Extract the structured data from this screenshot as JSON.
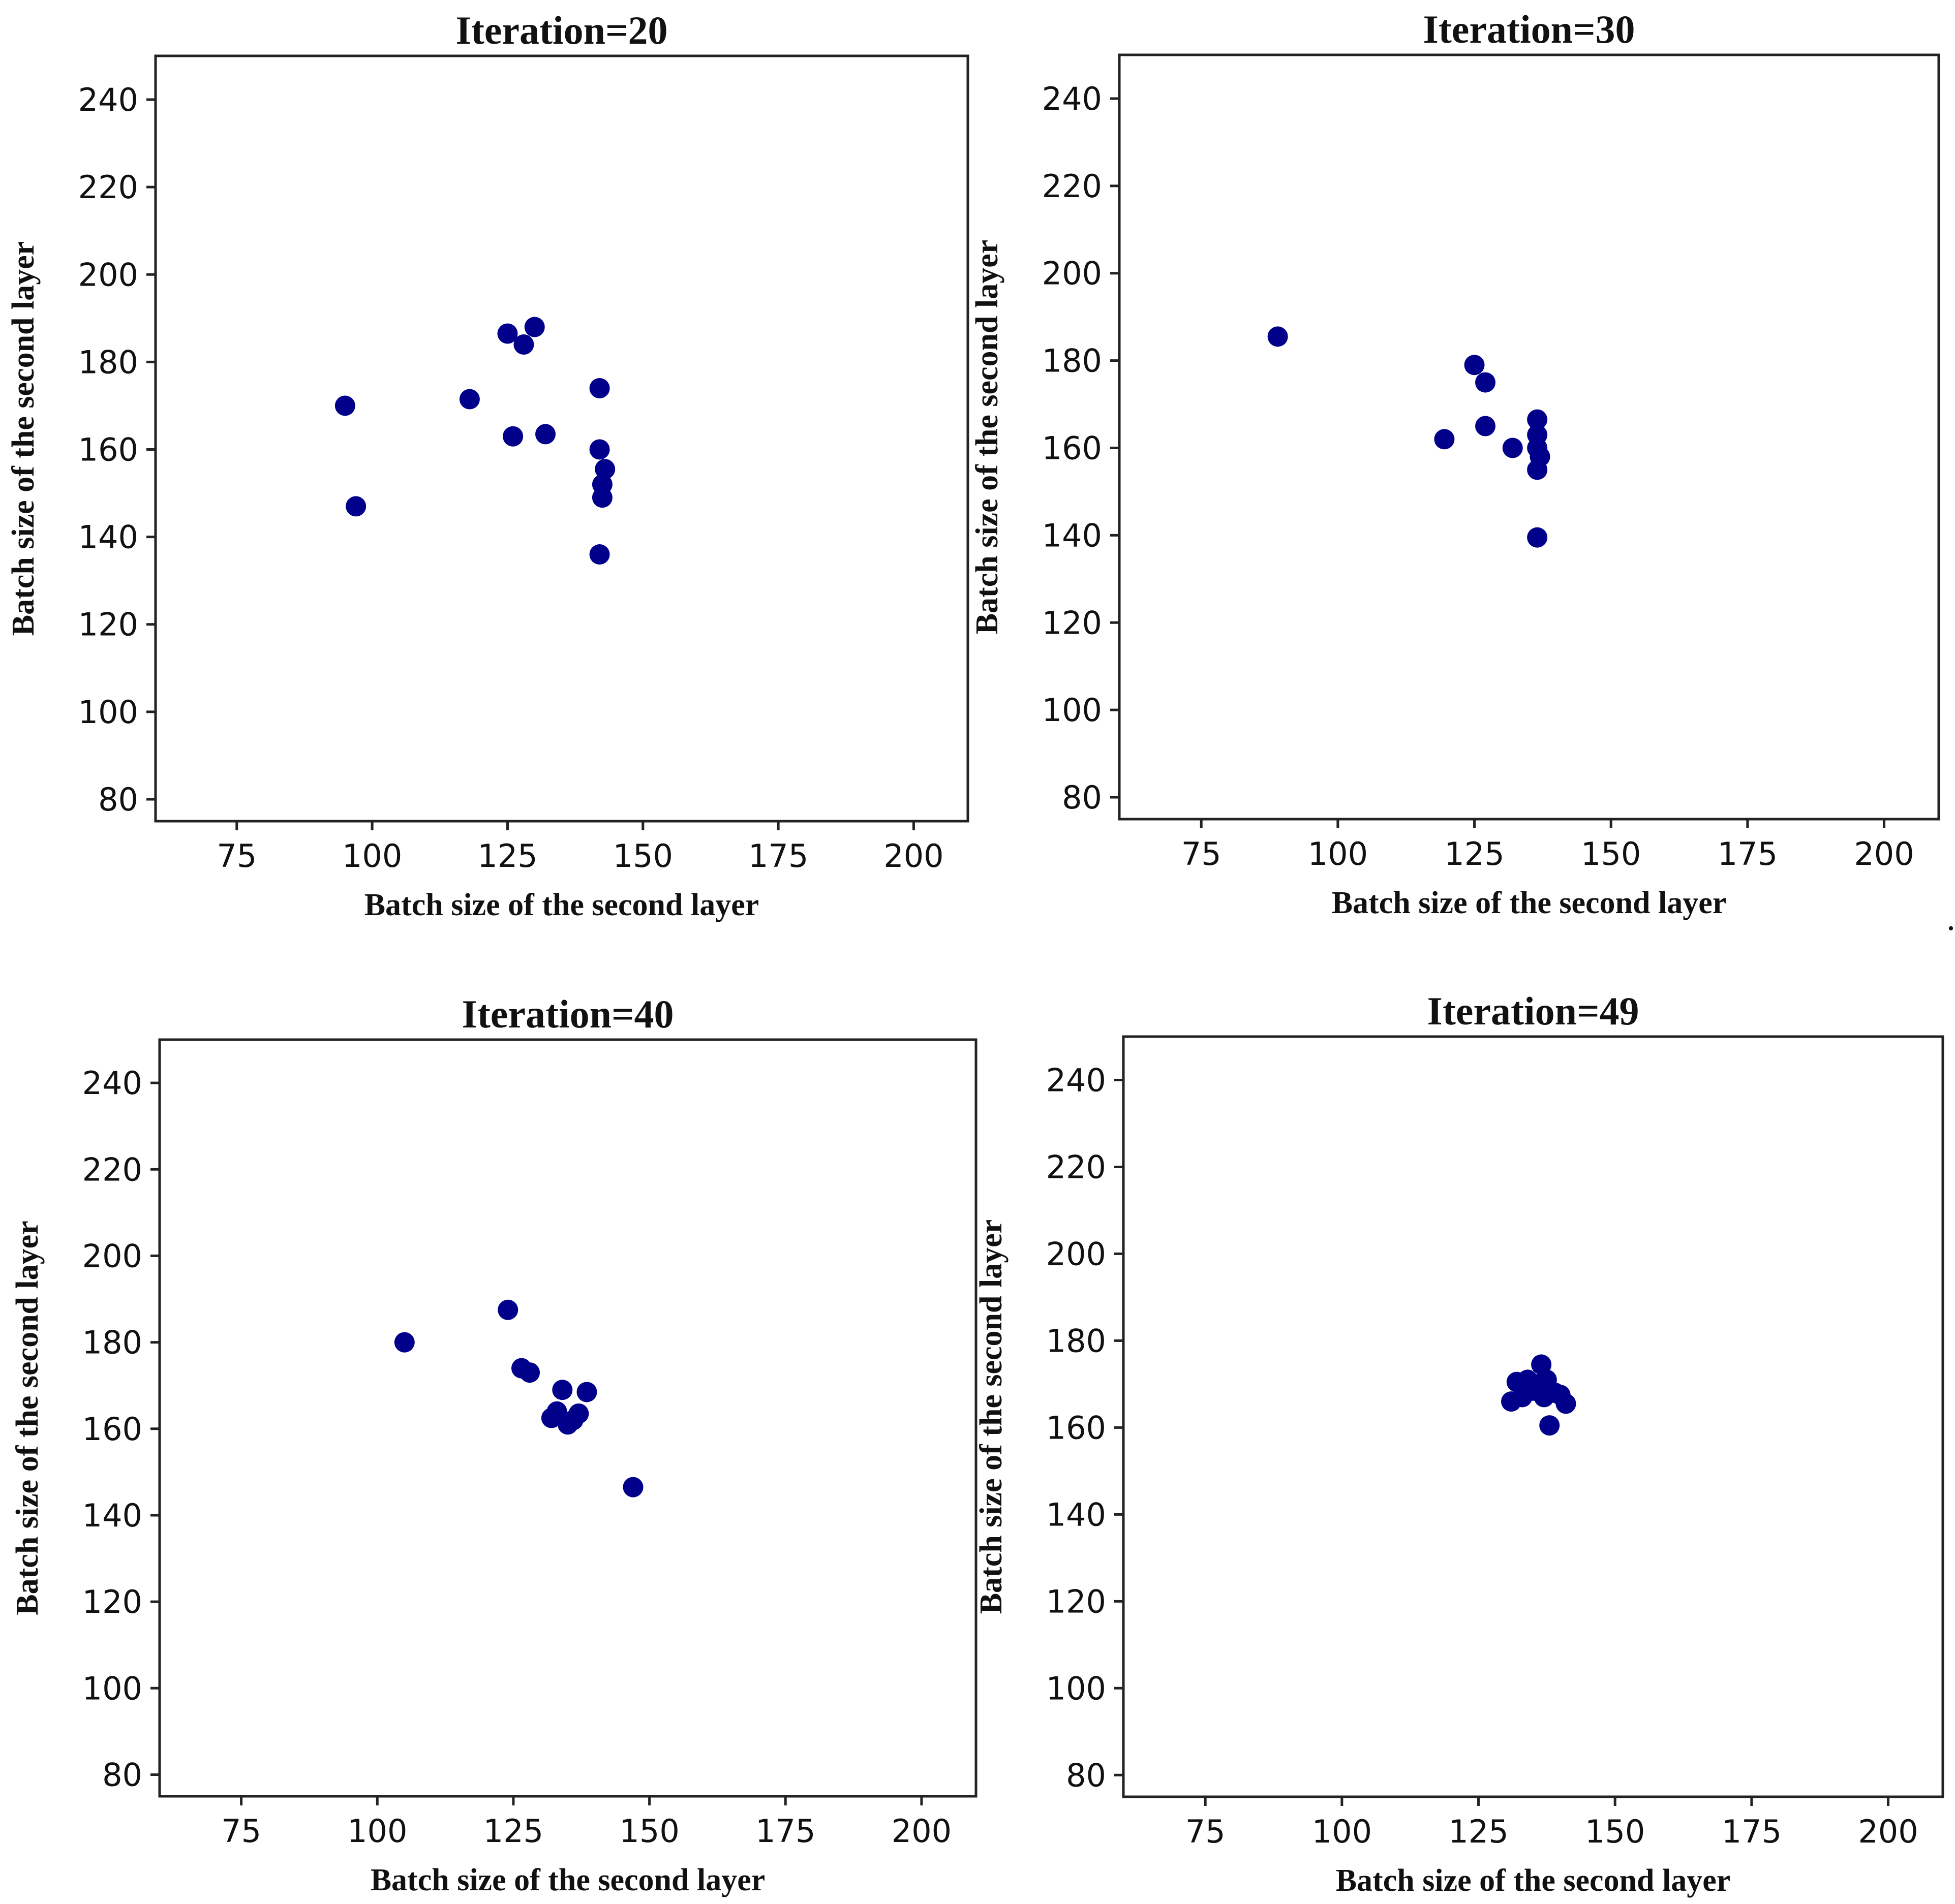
{
  "colors": {
    "point": "#00008b",
    "axis": "#222222"
  },
  "chart_data": [
    {
      "type": "scatter",
      "title": "Iteration=20",
      "xlabel": "Batch size of the second layer",
      "ylabel": "Batch size of the second layer",
      "xlim": [
        60,
        210
      ],
      "ylim": [
        75,
        250
      ],
      "xticks": [
        75,
        100,
        125,
        150,
        175,
        200
      ],
      "yticks": [
        80,
        100,
        120,
        140,
        160,
        180,
        200,
        220,
        240
      ],
      "grid": false,
      "points": [
        {
          "x": 95,
          "y": 170
        },
        {
          "x": 97,
          "y": 147
        },
        {
          "x": 118,
          "y": 171.5
        },
        {
          "x": 125,
          "y": 186.5
        },
        {
          "x": 126,
          "y": 163
        },
        {
          "x": 128,
          "y": 184
        },
        {
          "x": 130,
          "y": 188
        },
        {
          "x": 132,
          "y": 163.5
        },
        {
          "x": 142,
          "y": 174
        },
        {
          "x": 142,
          "y": 160
        },
        {
          "x": 143,
          "y": 155.5
        },
        {
          "x": 142.5,
          "y": 152
        },
        {
          "x": 142.5,
          "y": 149
        },
        {
          "x": 142,
          "y": 136
        }
      ]
    },
    {
      "type": "scatter",
      "title": "Iteration=30",
      "xlabel": "Batch size of the second layer",
      "ylabel": "Batch size of the second layer",
      "xlim": [
        60,
        210
      ],
      "ylim": [
        75,
        250
      ],
      "xticks": [
        75,
        100,
        125,
        150,
        175,
        200
      ],
      "yticks": [
        80,
        100,
        120,
        140,
        160,
        180,
        200,
        220,
        240
      ],
      "grid": false,
      "points": [
        {
          "x": 89,
          "y": 185.5
        },
        {
          "x": 119.5,
          "y": 162
        },
        {
          "x": 125,
          "y": 179
        },
        {
          "x": 127,
          "y": 175
        },
        {
          "x": 127,
          "y": 165
        },
        {
          "x": 132,
          "y": 160
        },
        {
          "x": 136.5,
          "y": 166.5
        },
        {
          "x": 136.5,
          "y": 163
        },
        {
          "x": 136.5,
          "y": 160
        },
        {
          "x": 137,
          "y": 158
        },
        {
          "x": 136.5,
          "y": 155
        },
        {
          "x": 136.5,
          "y": 139.5
        }
      ]
    },
    {
      "type": "scatter",
      "title": "Iteration=40",
      "xlabel": "Batch size of the second layer",
      "ylabel": "Batch size of the second layer",
      "xlim": [
        60,
        210
      ],
      "ylim": [
        75,
        250
      ],
      "xticks": [
        75,
        100,
        125,
        150,
        175,
        200
      ],
      "yticks": [
        80,
        100,
        120,
        140,
        160,
        180,
        200,
        220,
        240
      ],
      "grid": false,
      "points": [
        {
          "x": 105,
          "y": 180
        },
        {
          "x": 124,
          "y": 187.5
        },
        {
          "x": 126.5,
          "y": 174
        },
        {
          "x": 128,
          "y": 173
        },
        {
          "x": 132,
          "y": 162.5
        },
        {
          "x": 133,
          "y": 164
        },
        {
          "x": 134,
          "y": 169
        },
        {
          "x": 135,
          "y": 161
        },
        {
          "x": 136,
          "y": 162
        },
        {
          "x": 137,
          "y": 163.5
        },
        {
          "x": 138.5,
          "y": 168.5
        },
        {
          "x": 147,
          "y": 146.5
        }
      ]
    },
    {
      "type": "scatter",
      "title": "Iteration=49",
      "xlabel": "Batch size of the second layer",
      "ylabel": "Batch size of the second layer",
      "xlim": [
        60,
        210
      ],
      "ylim": [
        75,
        250
      ],
      "xticks": [
        75,
        100,
        125,
        150,
        175,
        200
      ],
      "yticks": [
        80,
        100,
        120,
        140,
        160,
        180,
        200,
        220,
        240
      ],
      "grid": false,
      "points": [
        {
          "x": 131,
          "y": 166
        },
        {
          "x": 132,
          "y": 170.5
        },
        {
          "x": 133,
          "y": 167
        },
        {
          "x": 134,
          "y": 171
        },
        {
          "x": 135,
          "y": 168.5
        },
        {
          "x": 136,
          "y": 170
        },
        {
          "x": 136.5,
          "y": 174.5
        },
        {
          "x": 137,
          "y": 167
        },
        {
          "x": 137.5,
          "y": 171
        },
        {
          "x": 138,
          "y": 160.5
        },
        {
          "x": 139,
          "y": 168
        },
        {
          "x": 140,
          "y": 167.5
        },
        {
          "x": 141,
          "y": 165.5
        }
      ]
    }
  ]
}
